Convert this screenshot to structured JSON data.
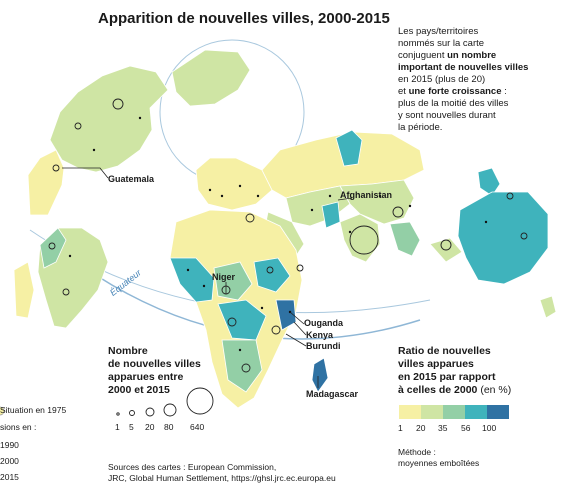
{
  "title": "Apparition de nouvelles villes, 2000-2015",
  "note": {
    "line1": "Les pays/territoires",
    "line2": "nommés sur la carte",
    "line3a": "conjuguent ",
    "line3b": "un nombre",
    "line4": "important de nouvelles villes",
    "line5": "en 2015 (plus de 20)",
    "line6a": "et ",
    "line6b": "une forte croissance",
    "line6c": " :",
    "line7": "plus de la moitié des villes",
    "line8": "y sont nouvelles durant",
    "line9": "la période."
  },
  "countries": {
    "guatemala": "Guatemala",
    "afghanistan": "Afghanistan",
    "niger": "Niger",
    "ouganda": "Ouganda",
    "kenya": "Kenya",
    "burundi": "Burundi",
    "madagascar": "Madagascar"
  },
  "equator_label": "Équateur",
  "size_legend": {
    "title_line1": "Nombre",
    "title_line2": "de nouvelles villes",
    "title_line3": "apparues entre",
    "title_line4": "2000 et 2015",
    "values": [
      "1",
      "5",
      "20",
      "80",
      "640"
    ]
  },
  "ratio_legend": {
    "title_line1": "Ratio de nouvelles",
    "title_line2": "villes apparues",
    "title_line3": "en 2015 par rapport",
    "title_line4": "à celles de 2000",
    "unit": " (en %)",
    "ticks": [
      "1",
      "20",
      "35",
      "56",
      "100"
    ],
    "colors": [
      "#f6f0a4",
      "#cfe5a4",
      "#93cfa6",
      "#3fb3bc",
      "#2f72a3"
    ]
  },
  "method": {
    "line1": "Méthode :",
    "line2": "moyennes emboîtées"
  },
  "time_legend": {
    "situation": "Situation en 1975",
    "sions": "sions en :",
    "y1990": "1990",
    "y2000": "2000",
    "y2015": "2015"
  },
  "sources": {
    "line1": "Sources des cartes : European Commission,",
    "line2": "JRC, Global Human Settlement, https://ghsl.jrc.ec.europa.eu"
  },
  "colors": {
    "ocean": "#ffffff",
    "graticule": "#a9c8de",
    "equator": "#8fb7d6"
  }
}
